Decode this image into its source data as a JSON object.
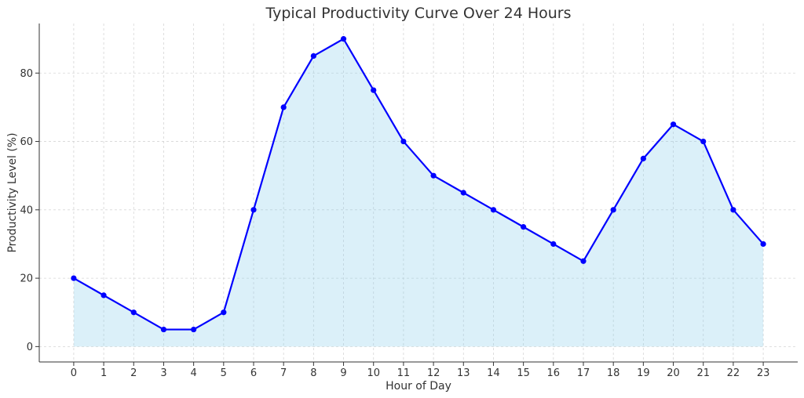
{
  "chart_data": {
    "type": "line",
    "title": "Typical Productivity Curve Over 24 Hours",
    "xlabel": "Hour of Day",
    "ylabel": "Productivity Level (%)",
    "x": [
      0,
      1,
      2,
      3,
      4,
      5,
      6,
      7,
      8,
      9,
      10,
      11,
      12,
      13,
      14,
      15,
      16,
      17,
      18,
      19,
      20,
      21,
      22,
      23
    ],
    "series": [
      {
        "values": [
          20,
          15,
          10,
          5,
          5,
          10,
          40,
          70,
          85,
          90,
          75,
          60,
          50,
          45,
          40,
          35,
          30,
          25,
          40,
          55,
          65,
          60,
          40,
          30
        ],
        "color": "#0000ff",
        "fill_color": "#87ceeb",
        "fill_opacity": 0.3,
        "marker": "circle"
      }
    ],
    "xticks": [
      "0",
      "1",
      "2",
      "3",
      "4",
      "5",
      "6",
      "7",
      "8",
      "9",
      "10",
      "11",
      "12",
      "13",
      "14",
      "15",
      "16",
      "17",
      "18",
      "19",
      "20",
      "21",
      "22",
      "23"
    ],
    "yticks": [
      "0",
      "20",
      "40",
      "60",
      "80"
    ],
    "ytick_values": [
      0,
      20,
      40,
      60,
      80
    ],
    "xlim": [
      -1.15,
      24.15
    ],
    "ylim": [
      -4.5,
      94.5
    ],
    "grid": true,
    "grid_style": "dashed",
    "legend": false
  }
}
